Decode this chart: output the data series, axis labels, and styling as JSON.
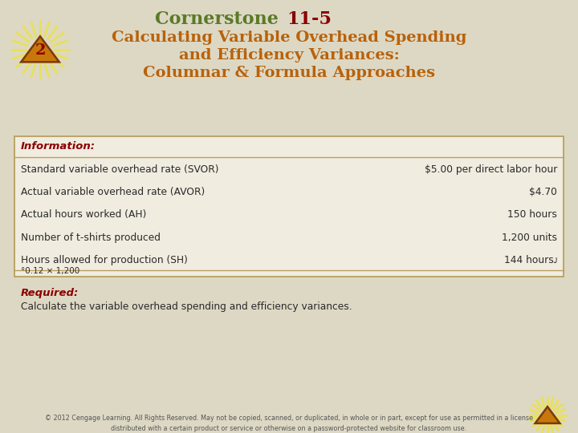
{
  "bg_color": "#ddd8c4",
  "title_line1_normal": "Cornerstone ",
  "title_line1_bold": "11-5",
  "title_line2": "Calculating Variable Overhead Spending",
  "title_line3": "and Efficiency Variances:",
  "title_line4": "Columnar & Formula Approaches",
  "title_color_green": "#5a7a28",
  "title_color_red": "#8b0000",
  "title_color_orange": "#b8620a",
  "info_header": "Information:",
  "table_rows": [
    [
      "Standard variable overhead rate (SVOR)",
      "$5.00 per direct labor hour"
    ],
    [
      "Actual variable overhead rate (AVOR)",
      "$4.70"
    ],
    [
      "Actual hours worked (AH)",
      "150 hours"
    ],
    [
      "Number of t-shirts produced",
      "1,200 units"
    ],
    [
      "Hours allowed for production (SH)",
      "144 hoursᴊ"
    ]
  ],
  "footnote": "°0.12 × 1,200",
  "required_header": "Required:",
  "required_text": "Calculate the variable overhead spending and efficiency variances.",
  "footer_text": "© 2012 Cengage Learning. All Rights Reserved. May not be copied, scanned, or duplicated, in whole or in part, except for use as permitted in a license\ndistributed with a certain product or service or otherwise on a password-protected website for classroom use.",
  "table_bg": "#f0ece0",
  "table_border_color": "#b8a060",
  "text_color": "#2a2a2a",
  "info_header_color": "#8b0000",
  "required_color": "#8b0000",
  "tri_fill": "#c8780a",
  "tri_edge": "#7a3a08",
  "ray_color": "#e8e060",
  "num2_color": "#8b0000",
  "footer_color": "#555555"
}
